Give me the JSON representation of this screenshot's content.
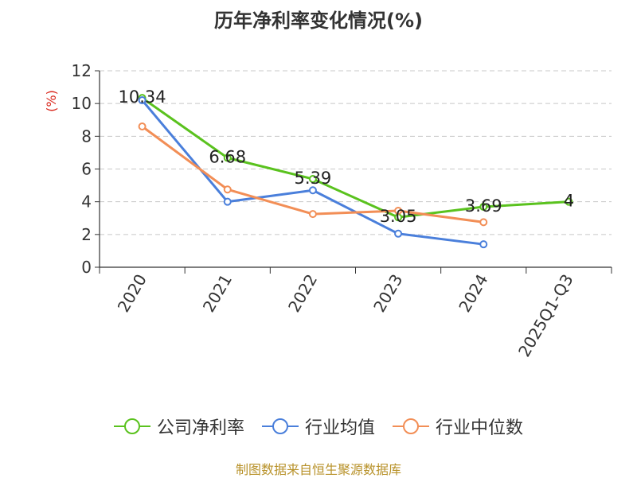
{
  "chart_data": {
    "type": "line",
    "title": "历年净利率变化情况(%)",
    "ylabel": "(%)",
    "xlabel": "",
    "categories": [
      "2020",
      "2021",
      "2022",
      "2023",
      "2024",
      "2025Q1-Q3"
    ],
    "ylim": [
      0,
      12
    ],
    "yticks": [
      0,
      2,
      4,
      6,
      8,
      10,
      12
    ],
    "grid": true,
    "legend_position": "bottom",
    "series": [
      {
        "name": "公司净利率",
        "color": "#5ac21e",
        "values": [
          10.34,
          6.68,
          5.39,
          3.05,
          3.69,
          4
        ],
        "labels": [
          "10.34",
          "6.68",
          "5.39",
          "3.05",
          "3.69",
          "4"
        ]
      },
      {
        "name": "行业均值",
        "color": "#4a7fdb",
        "values": [
          10.2,
          4.0,
          4.7,
          2.05,
          1.4,
          null
        ]
      },
      {
        "name": "行业中位数",
        "color": "#f28e56",
        "values": [
          8.6,
          4.75,
          3.25,
          3.45,
          2.75,
          null
        ]
      }
    ]
  },
  "source": {
    "text": "制图数据来自恒生聚源数据库",
    "color": "#b8922a"
  },
  "ylabel_color": "#d9261c"
}
